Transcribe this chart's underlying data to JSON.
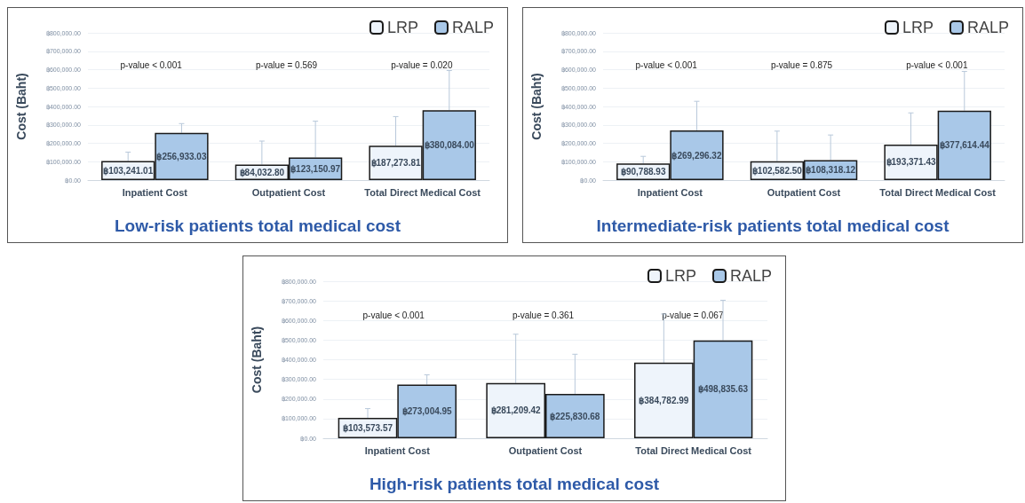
{
  "chart_data": [
    {
      "type": "bar",
      "title": "Low-risk patients total medical cost",
      "ylabel": "Cost (Baht)",
      "categories": [
        "Inpatient Cost",
        "Outpatient Cost",
        "Total Direct Medical Cost"
      ],
      "series": [
        {
          "name": "LRP",
          "color": "#eef4fb",
          "values": [
            103241.01,
            84032.8,
            187273.81
          ],
          "value_labels": [
            "฿103,241.01",
            "฿84,032.80",
            "฿187,273.81"
          ],
          "errors": [
            [
              103241.01,
              152000
            ],
            [
              84032.8,
              212000
            ],
            [
              187273.81,
              345000
            ]
          ]
        },
        {
          "name": "RALP",
          "color": "#a9c8e8",
          "values": [
            256933.03,
            123150.97,
            380084.0
          ],
          "value_labels": [
            "฿256,933.03",
            "฿123,150.97",
            "฿380,084.00"
          ],
          "errors": [
            [
              256933.03,
              307000
            ],
            [
              123150.97,
              320000
            ],
            [
              380084.0,
              595000
            ]
          ]
        }
      ],
      "ylim": [
        0,
        800000
      ],
      "yticks": [
        {
          "value": 0,
          "label": "฿0.00"
        },
        {
          "value": 100000,
          "label": "฿100,000.00"
        },
        {
          "value": 200000,
          "label": "฿200,000.00"
        },
        {
          "value": 300000,
          "label": "฿300,000.00"
        },
        {
          "value": 400000,
          "label": "฿400,000.00"
        },
        {
          "value": 500000,
          "label": "฿500,000.00"
        },
        {
          "value": 600000,
          "label": "฿600,000.00"
        },
        {
          "value": 700000,
          "label": "฿700,000.00"
        },
        {
          "value": 800000,
          "label": "฿800,000.00"
        }
      ],
      "annotations": [
        "p-value < 0.001",
        "p-value = 0.569",
        "p-value = 0.020"
      ],
      "grid": "y",
      "legend": "top right"
    },
    {
      "type": "bar",
      "title": "Intermediate-risk patients total medical cost",
      "ylabel": "Cost (Baht)",
      "categories": [
        "Inpatient Cost",
        "Outpatient Cost",
        "Total Direct Medical Cost"
      ],
      "series": [
        {
          "name": "LRP",
          "color": "#eef4fb",
          "values": [
            90788.93,
            102582.5,
            193371.43
          ],
          "value_labels": [
            "฿90,788.93",
            "฿102,582.50",
            "฿193,371.43"
          ],
          "errors": [
            [
              90788.93,
              129000
            ],
            [
              102582.5,
              266000
            ],
            [
              193371.43,
              365000
            ]
          ]
        },
        {
          "name": "RALP",
          "color": "#a9c8e8",
          "values": [
            269296.32,
            108318.12,
            377614.44
          ],
          "value_labels": [
            "฿269,296.32",
            "฿108,318.12",
            "฿377,614.44"
          ],
          "errors": [
            [
              269296.32,
              428000
            ],
            [
              108318.12,
              245000
            ],
            [
              377614.44,
              590000
            ]
          ]
        }
      ],
      "ylim": [
        0,
        800000
      ],
      "yticks": [
        {
          "value": 0,
          "label": "฿0.00"
        },
        {
          "value": 100000,
          "label": "฿100,000.00"
        },
        {
          "value": 200000,
          "label": "฿200,000.00"
        },
        {
          "value": 300000,
          "label": "฿300,000.00"
        },
        {
          "value": 400000,
          "label": "฿400,000.00"
        },
        {
          "value": 500000,
          "label": "฿500,000.00"
        },
        {
          "value": 600000,
          "label": "฿600,000.00"
        },
        {
          "value": 700000,
          "label": "฿700,000.00"
        },
        {
          "value": 800000,
          "label": "฿800,000.00"
        }
      ],
      "annotations": [
        "p-value < 0.001",
        "p-value = 0.875",
        "p-value < 0.001"
      ],
      "grid": "y",
      "legend": "top right"
    },
    {
      "type": "bar",
      "title": "High-risk patients total medical cost",
      "ylabel": "Cost (Baht)",
      "categories": [
        "Inpatient Cost",
        "Outpatient Cost",
        "Total Direct Medical Cost"
      ],
      "series": [
        {
          "name": "LRP",
          "color": "#eef4fb",
          "values": [
            103573.57,
            281209.42,
            384782.99
          ],
          "value_labels": [
            "฿103,573.57",
            "฿281,209.42",
            "฿384,782.99"
          ],
          "errors": [
            [
              103573.57,
              151000
            ],
            [
              281209.42,
              530000
            ],
            [
              384782.99,
              633000
            ]
          ]
        },
        {
          "name": "RALP",
          "color": "#a9c8e8",
          "values": [
            273004.95,
            225830.68,
            498835.63
          ],
          "value_labels": [
            "฿273,004.95",
            "฿225,830.68",
            "฿498,835.63"
          ],
          "errors": [
            [
              273004.95,
              323000
            ],
            [
              225830.68,
              428000
            ],
            [
              498835.63,
              703000
            ]
          ]
        }
      ],
      "ylim": [
        0,
        800000
      ],
      "yticks": [
        {
          "value": 0,
          "label": "฿0.00"
        },
        {
          "value": 100000,
          "label": "฿100,000.00"
        },
        {
          "value": 200000,
          "label": "฿200,000.00"
        },
        {
          "value": 300000,
          "label": "฿300,000.00"
        },
        {
          "value": 400000,
          "label": "฿400,000.00"
        },
        {
          "value": 500000,
          "label": "฿500,000.00"
        },
        {
          "value": 600000,
          "label": "฿600,000.00"
        },
        {
          "value": 700000,
          "label": "฿700,000.00"
        },
        {
          "value": 800000,
          "label": "฿800,000.00"
        }
      ],
      "annotations": [
        "p-value < 0.001",
        "p-value = 0.361",
        "p-value = 0.067"
      ],
      "grid": "y",
      "legend": "top right"
    }
  ]
}
